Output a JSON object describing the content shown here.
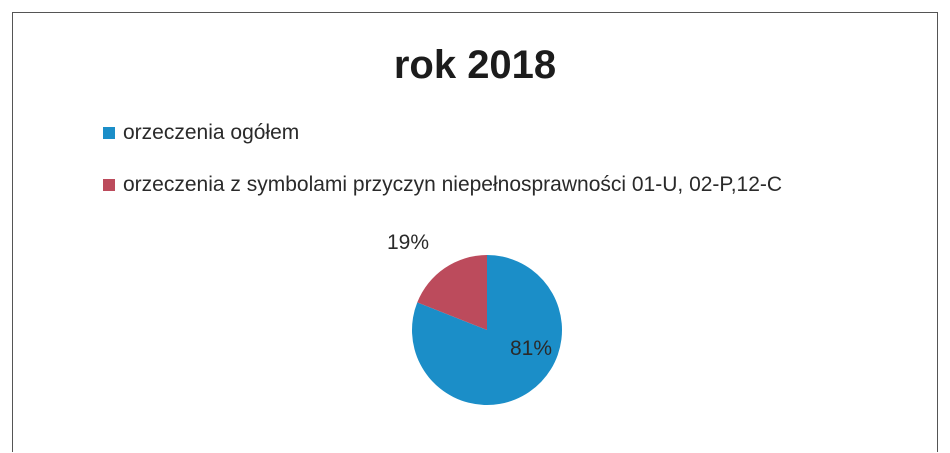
{
  "chart_data": {
    "type": "pie",
    "title": "rok 2018",
    "legend_position": "top-left",
    "series": [
      {
        "name": "orzeczenia ogółem",
        "value": 81,
        "label": "81%",
        "color": "#1b8ec8"
      },
      {
        "name": "orzeczenia z symbolami przyczyn niepełnosprawności  01-U, 02-P,12-C",
        "value": 19,
        "label": "19%",
        "color": "#bc4b5c"
      }
    ]
  }
}
